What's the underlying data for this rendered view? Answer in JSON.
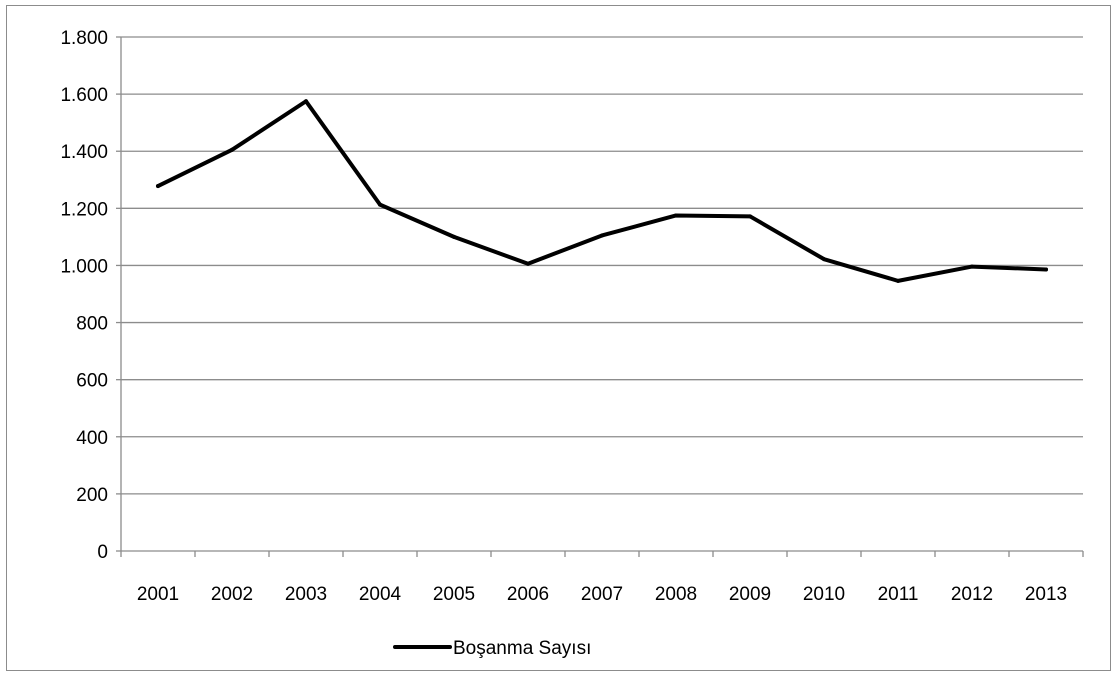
{
  "chart_data": {
    "type": "line",
    "categories": [
      "2001",
      "2002",
      "2003",
      "2004",
      "2005",
      "2006",
      "2007",
      "2008",
      "2009",
      "2010",
      "2011",
      "2012",
      "2013"
    ],
    "series": [
      {
        "name": "Boşanma Sayısı",
        "values": [
          1278,
          1405,
          1575,
          1213,
          1100,
          1006,
          1105,
          1175,
          1172,
          1022,
          946,
          996,
          986
        ],
        "color": "#000000"
      }
    ],
    "title": "",
    "xlabel": "",
    "ylabel": "",
    "ylim": [
      0,
      1800
    ],
    "yticks": [
      0,
      200,
      400,
      600,
      800,
      1000,
      1200,
      1400,
      1600,
      1800
    ],
    "ytick_labels": [
      "0",
      "200",
      "400",
      "600",
      "800",
      "1.000",
      "1.200",
      "1.400",
      "1.600",
      "1.800"
    ],
    "grid": "horizontal",
    "legend_position": "bottom",
    "colors": {
      "gridline": "#8c8c8c",
      "axis": "#8c8c8c",
      "frame": "#8c8c8c"
    }
  }
}
